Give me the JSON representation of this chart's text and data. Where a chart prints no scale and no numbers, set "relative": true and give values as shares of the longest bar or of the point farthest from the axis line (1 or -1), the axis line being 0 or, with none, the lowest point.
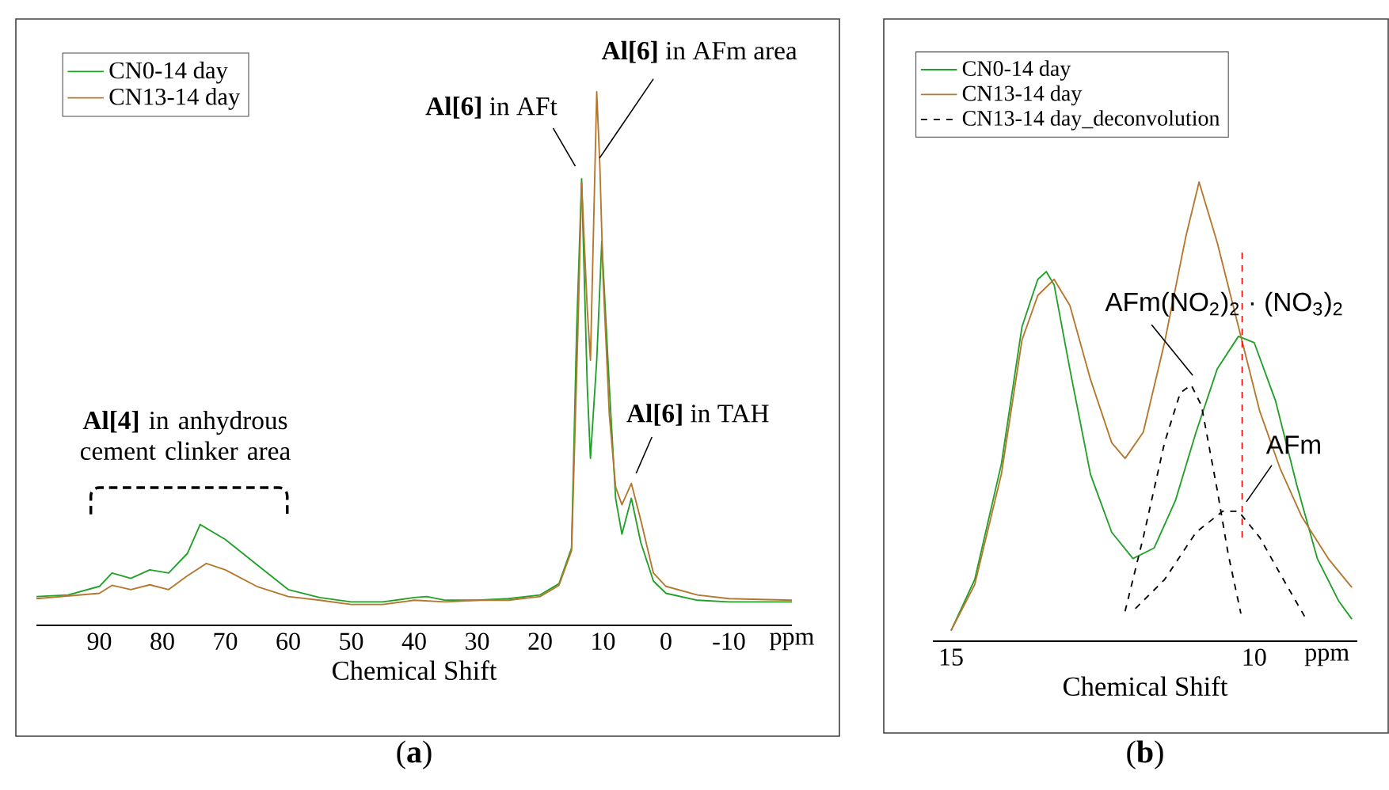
{
  "chart_data": [
    {
      "type": "line",
      "title": "(**a**)",
      "xlabel": "Chemical Shift",
      "relative": true,
      "legend": "top left",
      "xlim": [
        100,
        -20
      ],
      "xticks": [
        90,
        80,
        70,
        60,
        50,
        40,
        30,
        20,
        10,
        0,
        -10,
        {
          "value": -20,
          "label": "ppm"
        }
      ],
      "series": [
        {
          "name": "CN0-14 day",
          "color": "#22a02a",
          "x": [
            100,
            95,
            90,
            88,
            85,
            82,
            79,
            76,
            74,
            70,
            65,
            60,
            55,
            50,
            45,
            40,
            38,
            35,
            30,
            25,
            20,
            17,
            15,
            14.2,
            13.4,
            12.5,
            12,
            11,
            10.2,
            9,
            8,
            7,
            5.5,
            4,
            2,
            0,
            -5,
            -10,
            -20
          ],
          "values": [
            0.054,
            0.057,
            0.073,
            0.098,
            0.088,
            0.104,
            0.098,
            0.135,
            0.189,
            0.161,
            0.114,
            0.067,
            0.052,
            0.044,
            0.044,
            0.052,
            0.054,
            0.047,
            0.047,
            0.05,
            0.057,
            0.078,
            0.145,
            0.55,
            0.837,
            0.446,
            0.313,
            0.497,
            0.72,
            0.446,
            0.238,
            0.171,
            0.238,
            0.155,
            0.083,
            0.06,
            0.047,
            0.044,
            0.044
          ]
        },
        {
          "name": "CN13-14 day",
          "color": "#b5772e",
          "x": [
            100,
            90,
            88,
            85,
            82,
            79,
            76,
            73,
            70,
            65,
            60,
            55,
            50,
            45,
            40,
            35,
            30,
            25,
            20,
            17,
            15,
            14,
            13.4,
            12.5,
            12,
            11,
            10.5,
            10,
            9,
            8,
            7,
            5.5,
            4,
            2,
            0,
            -5,
            -10,
            -20
          ],
          "values": [
            0.05,
            0.06,
            0.075,
            0.067,
            0.076,
            0.067,
            0.093,
            0.116,
            0.104,
            0.073,
            0.054,
            0.047,
            0.039,
            0.039,
            0.047,
            0.044,
            0.047,
            0.047,
            0.054,
            0.075,
            0.14,
            0.55,
            0.829,
            0.591,
            0.497,
            1.0,
            0.86,
            0.653,
            0.394,
            0.259,
            0.226,
            0.266,
            0.197,
            0.098,
            0.073,
            0.057,
            0.05,
            0.047
          ]
        }
      ],
      "annotations": [
        {
          "text": "**Al[6]** in AFt",
          "x": 13.4,
          "y": 0.837
        },
        {
          "text": "**Al[6]** in AFm area",
          "x": 10.8,
          "y": 0.87
        },
        {
          "text": "**Al[6]** in TAH",
          "x": 5.5,
          "y": 0.27
        },
        "**Al[4]** in anhydrous cement clinker area"
      ]
    },
    {
      "type": "line",
      "title": "(**b**)",
      "xlabel": "Chemical Shift",
      "relative": true,
      "legend": "top left",
      "xlim": [
        15.3,
        8.3
      ],
      "xticks": [
        15,
        10,
        {
          "value": 8.8,
          "label": "ppm"
        }
      ],
      "series": [
        {
          "name": "CN0-14 day",
          "color": "#22a02a",
          "x": [
            15.0,
            14.61,
            14.17,
            13.83,
            13.57,
            13.43,
            13.3,
            13.04,
            12.7,
            12.35,
            12.0,
            11.65,
            11.3,
            10.96,
            10.61,
            10.26,
            10.0,
            9.65,
            9.3,
            8.96,
            8.61,
            8.39
          ],
          "values": [
            0.023,
            0.134,
            0.386,
            0.685,
            0.788,
            0.805,
            0.776,
            0.592,
            0.363,
            0.237,
            0.18,
            0.203,
            0.306,
            0.455,
            0.593,
            0.664,
            0.65,
            0.524,
            0.341,
            0.18,
            0.088,
            0.048
          ]
        },
        {
          "name": "CN13-14 day",
          "color": "#b5772e",
          "x": [
            15.0,
            14.61,
            14.17,
            13.83,
            13.57,
            13.3,
            13.04,
            12.7,
            12.35,
            12.13,
            11.83,
            11.48,
            11.13,
            10.91,
            10.61,
            10.26,
            9.91,
            9.57,
            9.22,
            8.78,
            8.39
          ],
          "values": [
            0.023,
            0.123,
            0.364,
            0.656,
            0.753,
            0.788,
            0.731,
            0.57,
            0.432,
            0.398,
            0.455,
            0.65,
            0.88,
            1.0,
            0.868,
            0.685,
            0.501,
            0.375,
            0.272,
            0.18,
            0.117
          ]
        },
        {
          "name": "CN13-14 day_deconvolution",
          "color": "#000000",
          "line_style": "dashed",
          "x": [
            12.13,
            11.83,
            11.48,
            11.22,
            11.04,
            10.87,
            10.61,
            10.43,
            10.22
          ],
          "values": [
            0.065,
            0.226,
            0.432,
            0.541,
            0.558,
            0.513,
            0.329,
            0.19,
            0.06
          ]
        },
        {
          "color": "#000000",
          "line_style": "dashed",
          "x": [
            11.96,
            11.48,
            10.96,
            10.52,
            10.26,
            9.91,
            9.57,
            9.17
          ],
          "values": [
            0.071,
            0.134,
            0.237,
            0.283,
            0.283,
            0.226,
            0.146,
            0.054
          ]
        }
      ],
      "ref_lines": [
        {
          "axis": "x",
          "value": 10.2,
          "color": "#ff0000",
          "line_style": "dashed"
        }
      ],
      "annotations": [
        {
          "text": "AFm(NO$_{2}$)$_{2}$ · (NO$_{3}$)$_{2}$",
          "x": 11.04,
          "y": 0.558
        },
        {
          "text": "AFm",
          "x": 10.26,
          "y": 0.283
        }
      ]
    }
  ]
}
